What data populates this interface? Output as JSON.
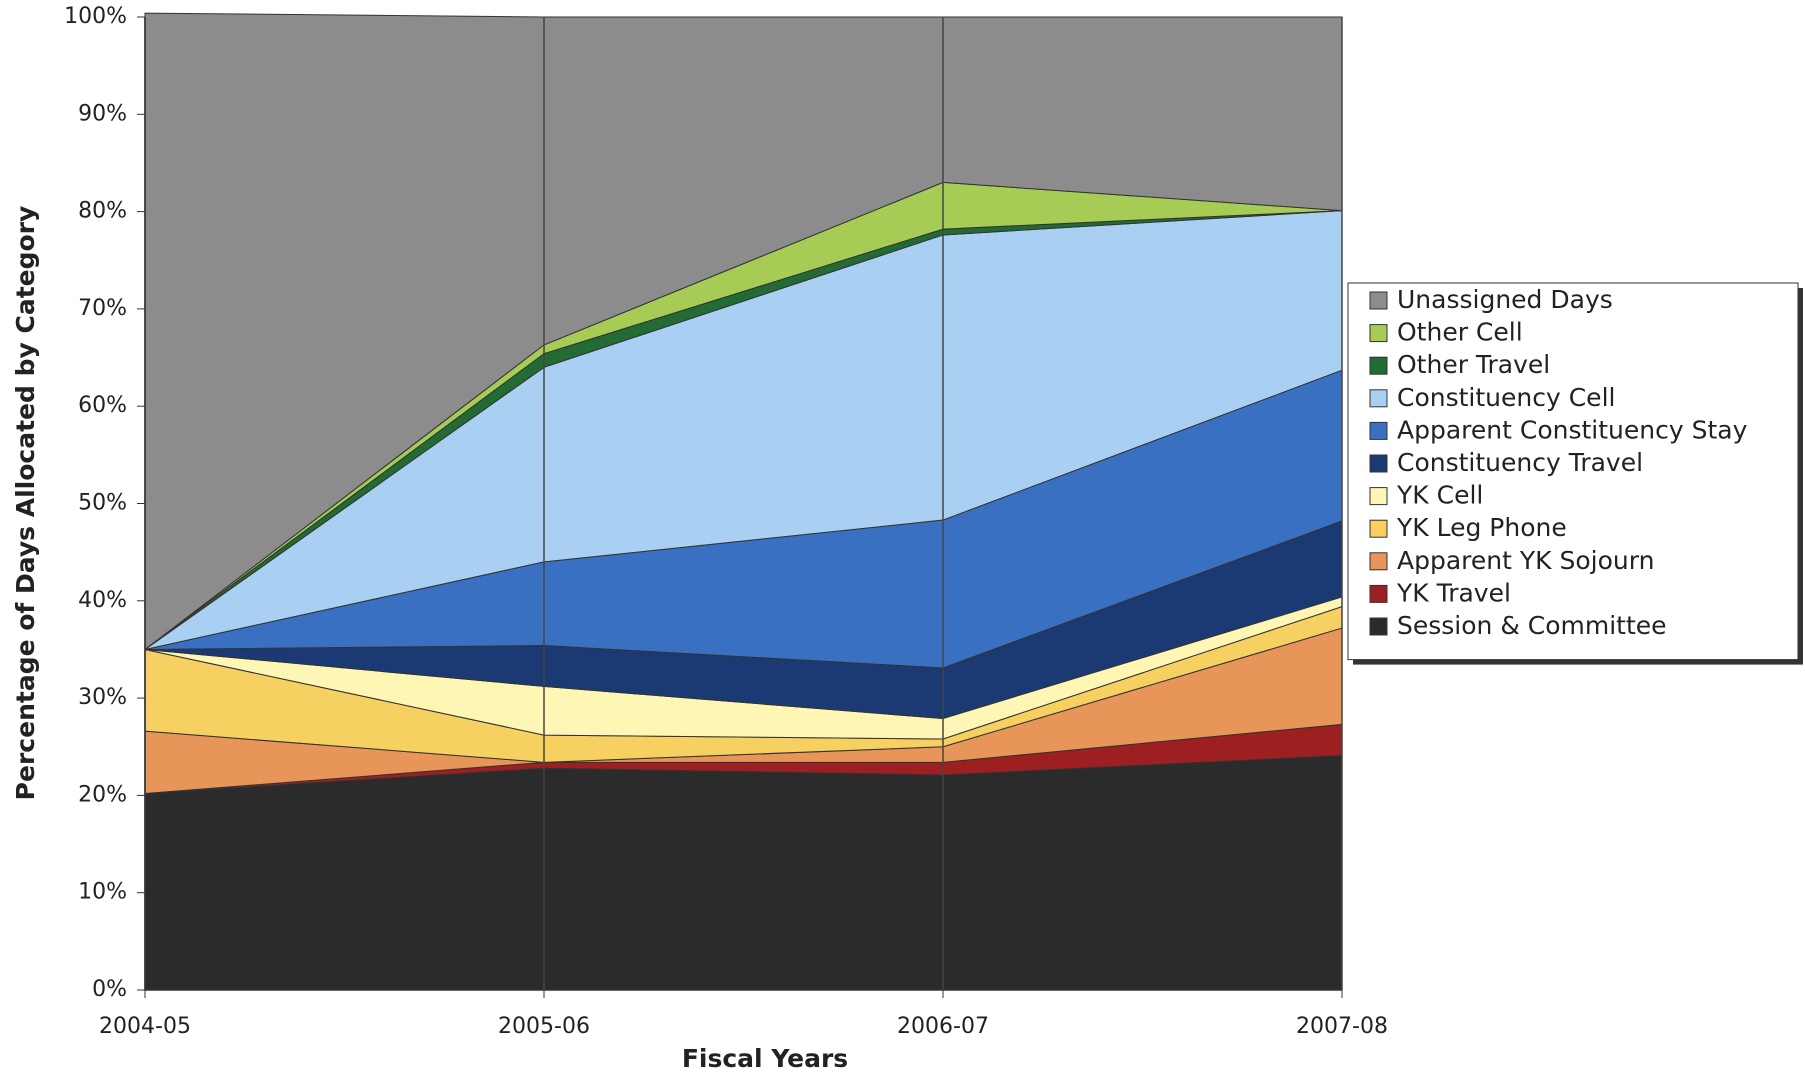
{
  "chart_data": {
    "type": "stacked_area",
    "xlabel": "Fiscal Years",
    "ylabel": "Percentage of Days Allocated by Category",
    "categories": [
      "2004-05",
      "2005-06",
      "2006-07",
      "2007-08"
    ],
    "ylim": [
      0,
      100
    ],
    "yticks": [
      {
        "value": 0,
        "label": "0%"
      },
      {
        "value": 10,
        "label": "10%"
      },
      {
        "value": 20,
        "label": "20%"
      },
      {
        "value": 30,
        "label": "30%"
      },
      {
        "value": 40,
        "label": "40%"
      },
      {
        "value": 50,
        "label": "50%"
      },
      {
        "value": 60,
        "label": "60%"
      },
      {
        "value": 70,
        "label": "70%"
      },
      {
        "value": 80,
        "label": "80%"
      },
      {
        "value": 90,
        "label": "90%"
      },
      {
        "value": 100,
        "label": "100%"
      }
    ],
    "legend": "right",
    "series": [
      {
        "name": "Session & Committee",
        "color": "#2b2b2b",
        "values": [
          20.2,
          22.8,
          22.1,
          24.1
        ]
      },
      {
        "name": "YK Travel",
        "color": "#9e1f22",
        "values": [
          0,
          0.6,
          1.3,
          3.2
        ]
      },
      {
        "name": "Apparent YK Sojourn",
        "color": "#e8955a",
        "values": [
          6.4,
          0,
          1.6,
          9.9
        ]
      },
      {
        "name": "YK Leg Phone",
        "color": "#f6d060",
        "values": [
          8.4,
          2.8,
          0.8,
          2.2
        ]
      },
      {
        "name": "YK Cell",
        "color": "#fdf6b4",
        "values": [
          0,
          5.0,
          2.1,
          1.0
        ]
      },
      {
        "name": "Constituency Travel",
        "color": "#1b3a73",
        "values": [
          0,
          4.2,
          5.2,
          7.8
        ]
      },
      {
        "name": "Apparent Constituency Stay",
        "color": "#3a70c2",
        "values": [
          0,
          8.6,
          15.2,
          15.5
        ]
      },
      {
        "name": "Constituency Cell",
        "color": "#a9d0f3",
        "values": [
          0,
          20.0,
          29.3,
          16.4
        ]
      },
      {
        "name": "Other Travel",
        "color": "#236b35",
        "values": [
          0,
          1.4,
          0.6,
          0
        ]
      },
      {
        "name": "Other Cell",
        "color": "#a7cc55",
        "values": [
          0,
          0.9,
          4.8,
          0
        ]
      },
      {
        "name": "Unassigned Days",
        "color": "#8c8c8c",
        "values": [
          65.4,
          33.7,
          17.0,
          19.9
        ]
      }
    ]
  }
}
